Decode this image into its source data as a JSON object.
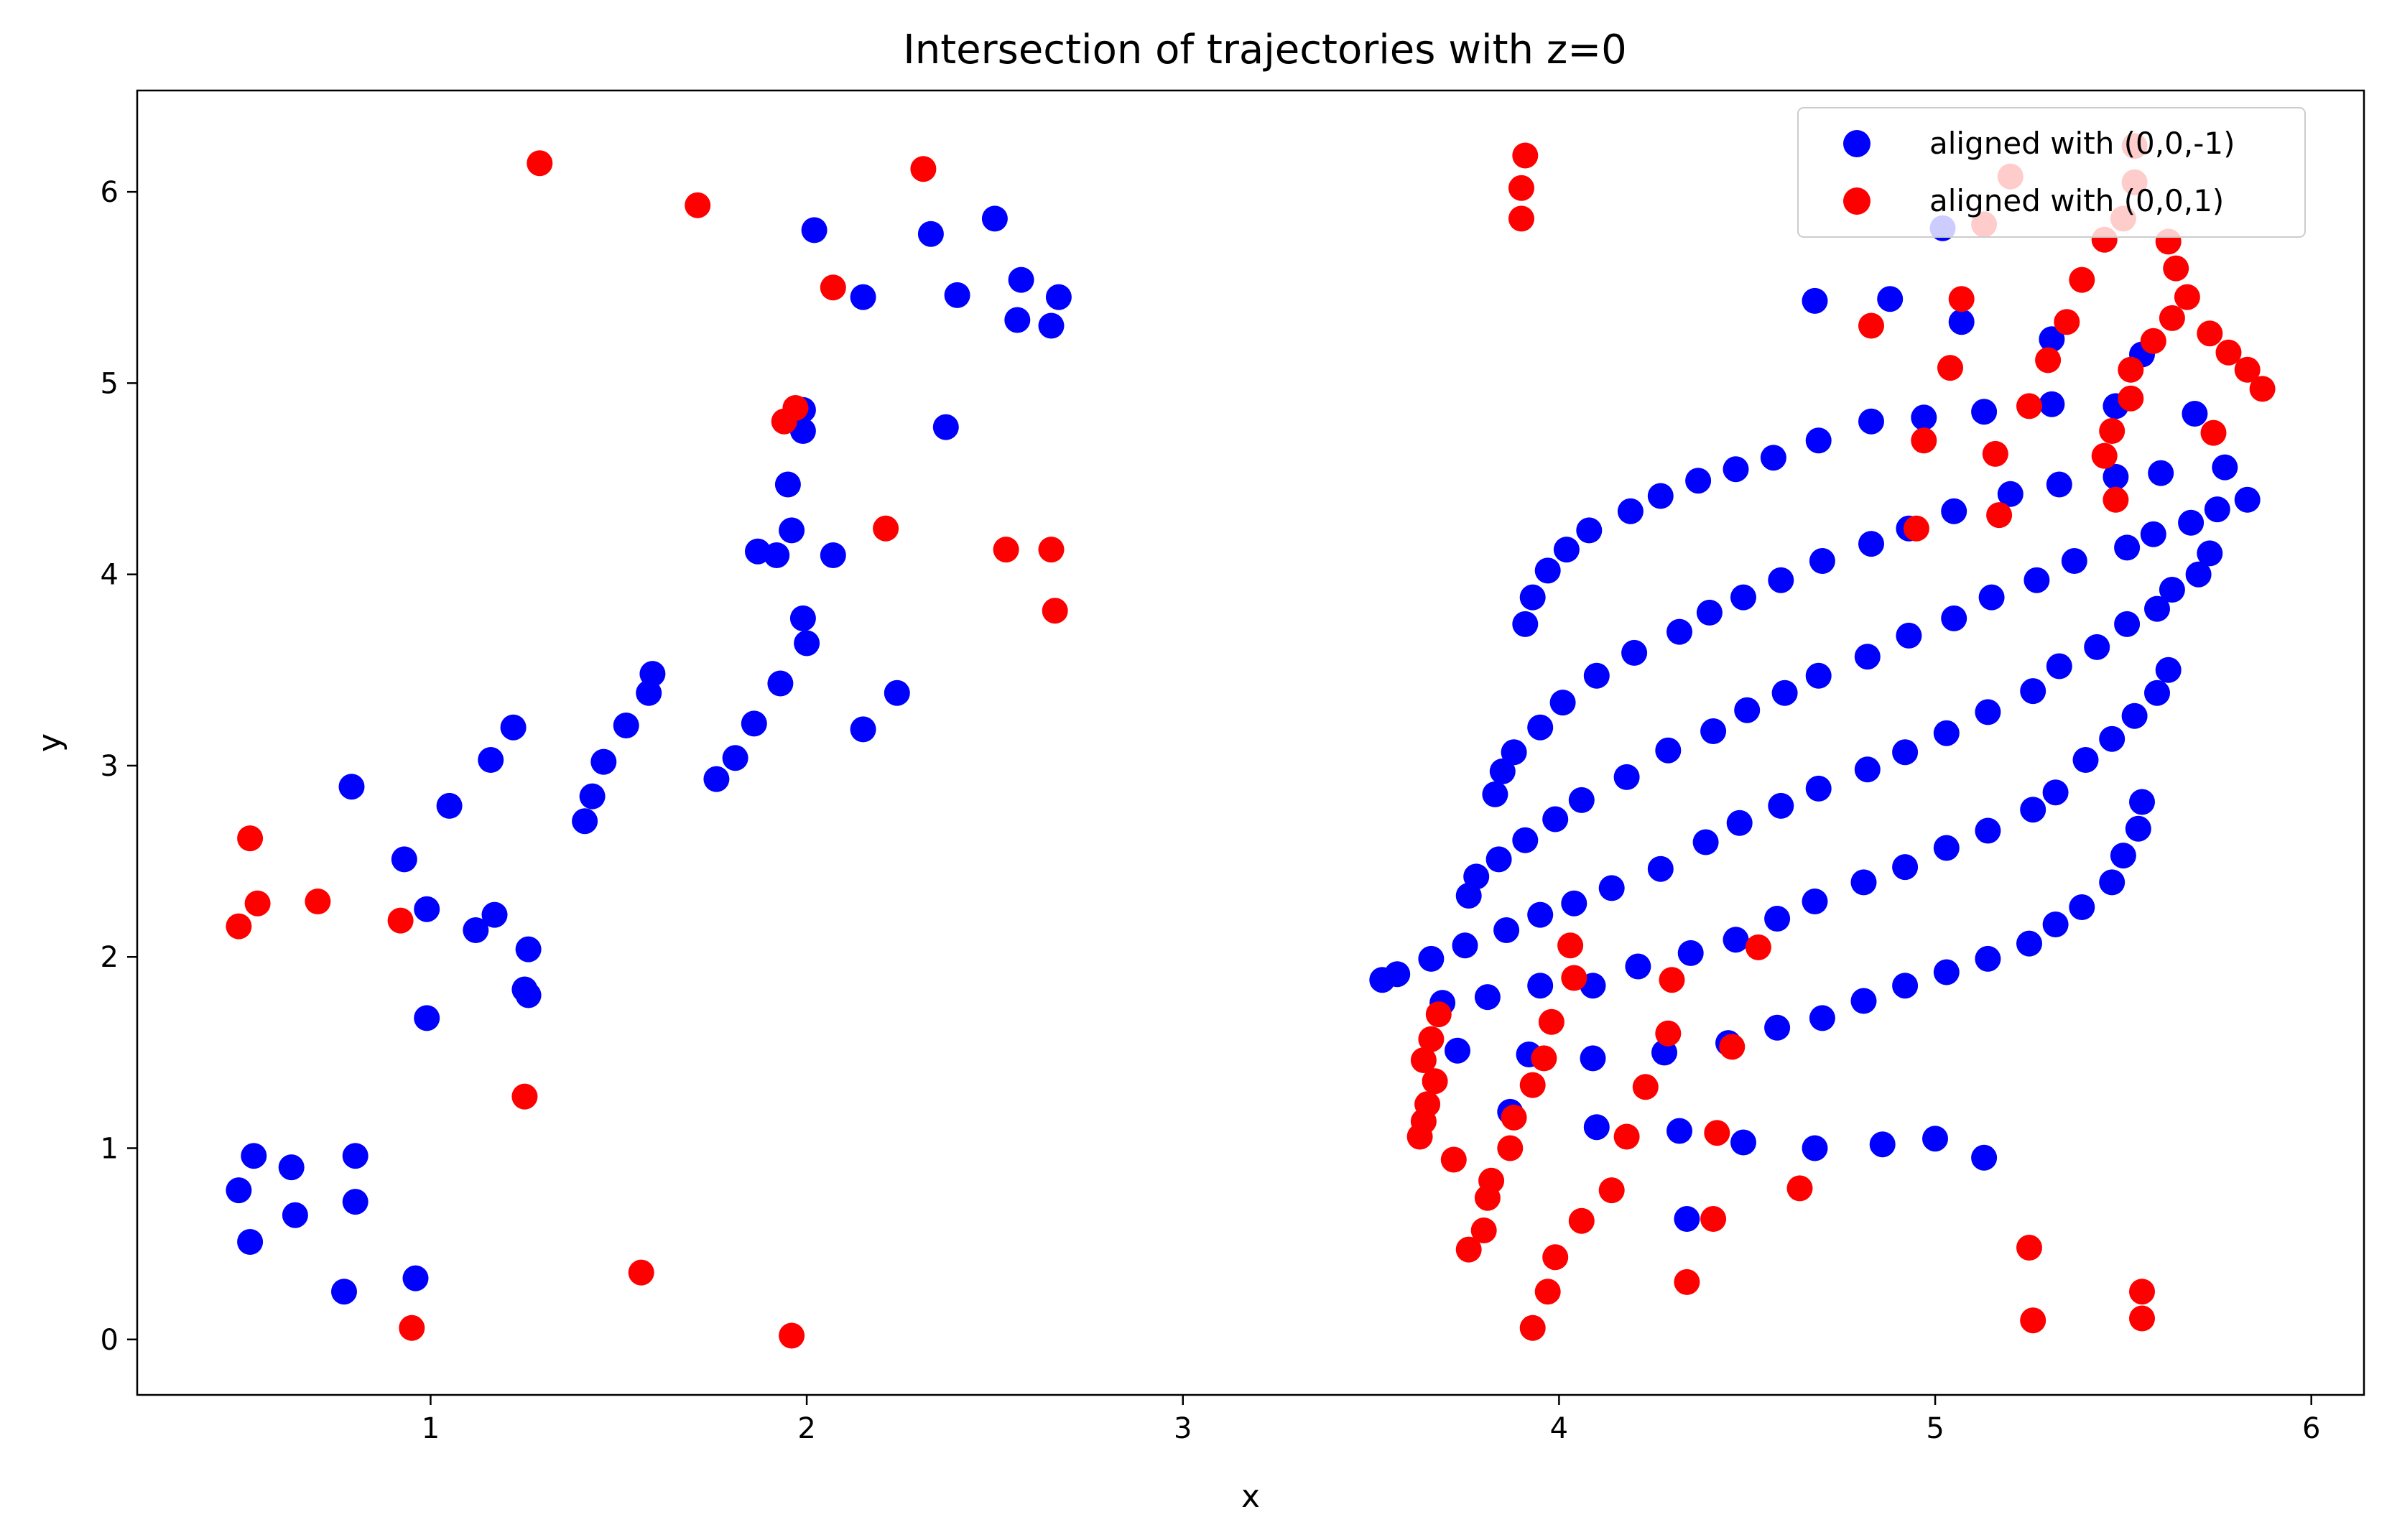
{
  "chart_data": {
    "type": "scatter",
    "title": "Intersection of trajectories with z=0",
    "xlabel": "x",
    "ylabel": "y",
    "xlim": [
      0.22,
      6.14
    ],
    "ylim": [
      -0.29,
      6.53
    ],
    "xticks": [
      1,
      2,
      3,
      4,
      5,
      6
    ],
    "yticks": [
      0,
      1,
      2,
      3,
      4,
      5,
      6
    ],
    "grid": false,
    "legend_position": "top-right",
    "series": [
      {
        "name": "aligned with (0,0,-1)",
        "color": "#0000ff",
        "points": [
          [
            0.49,
            0.78
          ],
          [
            0.52,
            0.51
          ],
          [
            0.53,
            0.96
          ],
          [
            0.63,
            0.9
          ],
          [
            0.64,
            0.65
          ],
          [
            0.77,
            0.25
          ],
          [
            0.8,
            0.72
          ],
          [
            0.8,
            0.96
          ],
          [
            0.96,
            0.32
          ],
          [
            0.99,
            1.68
          ],
          [
            0.99,
            2.25
          ],
          [
            0.93,
            2.51
          ],
          [
            0.79,
            2.89
          ],
          [
            1.05,
            2.79
          ],
          [
            1.12,
            2.14
          ],
          [
            1.17,
            2.22
          ],
          [
            1.26,
            2.04
          ],
          [
            1.25,
            1.83
          ],
          [
            1.26,
            1.8
          ],
          [
            1.16,
            3.03
          ],
          [
            1.22,
            3.2
          ],
          [
            1.41,
            2.71
          ],
          [
            1.43,
            2.84
          ],
          [
            1.46,
            3.02
          ],
          [
            1.52,
            3.21
          ],
          [
            1.58,
            3.38
          ],
          [
            1.59,
            3.48
          ],
          [
            1.76,
            2.93
          ],
          [
            1.81,
            3.04
          ],
          [
            1.86,
            3.22
          ],
          [
            1.87,
            4.12
          ],
          [
            1.92,
            4.1
          ],
          [
            1.93,
            3.43
          ],
          [
            1.95,
            4.47
          ],
          [
            1.96,
            4.23
          ],
          [
            1.99,
            4.86
          ],
          [
            1.99,
            4.75
          ],
          [
            1.99,
            3.77
          ],
          [
            2.0,
            3.64
          ],
          [
            2.07,
            4.1
          ],
          [
            2.02,
            5.8
          ],
          [
            2.15,
            5.45
          ],
          [
            2.15,
            3.19
          ],
          [
            2.24,
            3.38
          ],
          [
            2.33,
            5.78
          ],
          [
            2.37,
            4.77
          ],
          [
            2.4,
            5.46
          ],
          [
            2.5,
            5.86
          ],
          [
            2.56,
            5.33
          ],
          [
            2.57,
            5.54
          ],
          [
            2.65,
            5.3
          ],
          [
            2.67,
            5.45
          ],
          [
            3.53,
            1.88
          ],
          [
            3.57,
            1.91
          ],
          [
            3.66,
            1.99
          ],
          [
            3.69,
            1.76
          ],
          [
            3.73,
            1.51
          ],
          [
            3.75,
            2.06
          ],
          [
            3.76,
            2.32
          ],
          [
            3.78,
            2.42
          ],
          [
            3.81,
            1.79
          ],
          [
            3.83,
            2.85
          ],
          [
            3.84,
            2.51
          ],
          [
            3.85,
            2.97
          ],
          [
            3.86,
            2.14
          ],
          [
            3.88,
            3.07
          ],
          [
            3.87,
            1.19
          ],
          [
            3.91,
            3.74
          ],
          [
            3.91,
            2.61
          ],
          [
            3.92,
            1.49
          ],
          [
            3.93,
            3.88
          ],
          [
            3.95,
            2.22
          ],
          [
            3.95,
            1.85
          ],
          [
            3.95,
            3.2
          ],
          [
            3.97,
            4.02
          ],
          [
            3.99,
            2.72
          ],
          [
            4.01,
            3.33
          ],
          [
            4.02,
            4.13
          ],
          [
            4.04,
            2.28
          ],
          [
            4.06,
            2.82
          ],
          [
            4.08,
            4.23
          ],
          [
            4.09,
            1.85
          ],
          [
            4.09,
            1.47
          ],
          [
            4.1,
            1.11
          ],
          [
            4.1,
            3.47
          ],
          [
            4.14,
            2.36
          ],
          [
            4.18,
            2.94
          ],
          [
            4.19,
            4.33
          ],
          [
            4.2,
            3.59
          ],
          [
            4.21,
            1.95
          ],
          [
            4.27,
            4.41
          ],
          [
            4.27,
            2.46
          ],
          [
            4.28,
            1.5
          ],
          [
            4.29,
            3.08
          ],
          [
            4.32,
            3.7
          ],
          [
            4.32,
            1.09
          ],
          [
            4.34,
            0.63
          ],
          [
            4.35,
            2.02
          ],
          [
            4.37,
            4.49
          ],
          [
            4.39,
            2.6
          ],
          [
            4.4,
            3.8
          ],
          [
            4.41,
            3.18
          ],
          [
            4.45,
            1.55
          ],
          [
            4.47,
            2.09
          ],
          [
            4.47,
            4.55
          ],
          [
            4.48,
            2.7
          ],
          [
            4.49,
            3.88
          ],
          [
            4.49,
            1.03
          ],
          [
            4.5,
            3.29
          ],
          [
            4.57,
            4.61
          ],
          [
            4.58,
            2.2
          ],
          [
            4.58,
            1.63
          ],
          [
            4.59,
            3.97
          ],
          [
            4.59,
            2.79
          ],
          [
            4.6,
            3.38
          ],
          [
            4.68,
            1.0
          ],
          [
            4.68,
            5.43
          ],
          [
            4.68,
            2.29
          ],
          [
            4.69,
            4.7
          ],
          [
            4.69,
            2.88
          ],
          [
            4.69,
            3.47
          ],
          [
            4.7,
            4.07
          ],
          [
            4.7,
            1.68
          ],
          [
            4.81,
            2.39
          ],
          [
            4.81,
            1.77
          ],
          [
            4.82,
            2.98
          ],
          [
            4.82,
            3.57
          ],
          [
            4.83,
            4.8
          ],
          [
            4.83,
            4.16
          ],
          [
            4.86,
            1.02
          ],
          [
            4.88,
            5.44
          ],
          [
            4.92,
            2.47
          ],
          [
            4.92,
            1.85
          ],
          [
            4.92,
            3.07
          ],
          [
            4.93,
            4.24
          ],
          [
            4.93,
            3.68
          ],
          [
            4.97,
            4.82
          ],
          [
            5.0,
            1.05
          ],
          [
            5.02,
            5.81
          ],
          [
            5.03,
            2.57
          ],
          [
            5.03,
            1.92
          ],
          [
            5.03,
            3.17
          ],
          [
            5.05,
            3.77
          ],
          [
            5.05,
            4.33
          ],
          [
            5.07,
            5.32
          ],
          [
            5.13,
            4.85
          ],
          [
            5.13,
            0.95
          ],
          [
            5.14,
            2.66
          ],
          [
            5.14,
            1.99
          ],
          [
            5.14,
            3.28
          ],
          [
            5.15,
            3.88
          ],
          [
            5.2,
            4.42
          ],
          [
            5.25,
            2.07
          ],
          [
            5.26,
            2.77
          ],
          [
            5.26,
            3.39
          ],
          [
            5.27,
            3.97
          ],
          [
            5.31,
            4.89
          ],
          [
            5.31,
            5.23
          ],
          [
            5.32,
            2.86
          ],
          [
            5.32,
            2.17
          ],
          [
            5.33,
            3.52
          ],
          [
            5.33,
            4.47
          ],
          [
            5.37,
            4.07
          ],
          [
            5.39,
            2.26
          ],
          [
            5.4,
            3.03
          ],
          [
            5.43,
            3.62
          ],
          [
            5.47,
            2.39
          ],
          [
            5.47,
            3.14
          ],
          [
            5.48,
            4.51
          ],
          [
            5.48,
            4.88
          ],
          [
            5.5,
            2.53
          ],
          [
            5.51,
            4.14
          ],
          [
            5.51,
            3.74
          ],
          [
            5.53,
            3.26
          ],
          [
            5.54,
            2.67
          ],
          [
            5.55,
            2.81
          ],
          [
            5.55,
            5.15
          ],
          [
            5.58,
            4.21
          ],
          [
            5.59,
            3.38
          ],
          [
            5.59,
            3.82
          ],
          [
            5.6,
            4.53
          ],
          [
            5.62,
            3.5
          ],
          [
            5.63,
            3.92
          ],
          [
            5.68,
            4.27
          ],
          [
            5.69,
            4.84
          ],
          [
            5.7,
            4.0
          ],
          [
            5.73,
            4.11
          ],
          [
            5.75,
            4.34
          ],
          [
            5.77,
            4.56
          ],
          [
            5.83,
            4.39
          ]
        ]
      },
      {
        "name": "aligned with (0,0,1)",
        "color": "#ff0000",
        "points": [
          [
            0.49,
            2.16
          ],
          [
            0.52,
            2.62
          ],
          [
            0.54,
            2.28
          ],
          [
            0.7,
            2.29
          ],
          [
            0.92,
            2.19
          ],
          [
            0.95,
            0.06
          ],
          [
            1.25,
            1.27
          ],
          [
            1.29,
            6.15
          ],
          [
            1.56,
            0.35
          ],
          [
            1.71,
            5.93
          ],
          [
            1.94,
            4.8
          ],
          [
            1.96,
            0.02
          ],
          [
            1.97,
            4.87
          ],
          [
            2.07,
            5.5
          ],
          [
            2.21,
            4.24
          ],
          [
            2.31,
            6.12
          ],
          [
            2.53,
            4.13
          ],
          [
            2.65,
            4.13
          ],
          [
            2.66,
            3.81
          ],
          [
            3.63,
            1.06
          ],
          [
            3.64,
            1.46
          ],
          [
            3.64,
            1.14
          ],
          [
            3.65,
            1.23
          ],
          [
            3.66,
            1.57
          ],
          [
            3.67,
            1.35
          ],
          [
            3.68,
            1.7
          ],
          [
            3.72,
            0.94
          ],
          [
            3.76,
            0.47
          ],
          [
            3.8,
            0.57
          ],
          [
            3.81,
            0.74
          ],
          [
            3.82,
            0.83
          ],
          [
            3.87,
            1.0
          ],
          [
            3.88,
            1.16
          ],
          [
            3.9,
            5.86
          ],
          [
            3.9,
            6.02
          ],
          [
            3.91,
            6.19
          ],
          [
            3.93,
            0.06
          ],
          [
            3.93,
            1.33
          ],
          [
            3.96,
            1.47
          ],
          [
            3.97,
            0.25
          ],
          [
            3.98,
            1.66
          ],
          [
            3.99,
            0.43
          ],
          [
            4.03,
            2.06
          ],
          [
            4.04,
            1.89
          ],
          [
            4.06,
            0.62
          ],
          [
            4.14,
            0.78
          ],
          [
            4.18,
            1.06
          ],
          [
            4.23,
            1.32
          ],
          [
            4.29,
            1.6
          ],
          [
            4.3,
            1.88
          ],
          [
            4.34,
            0.3
          ],
          [
            4.41,
            0.63
          ],
          [
            4.42,
            1.08
          ],
          [
            4.46,
            1.53
          ],
          [
            4.53,
            2.05
          ],
          [
            4.64,
            0.79
          ],
          [
            4.83,
            5.3
          ],
          [
            4.95,
            4.24
          ],
          [
            4.97,
            4.7
          ],
          [
            5.04,
            5.08
          ],
          [
            5.07,
            5.44
          ],
          [
            5.13,
            5.83
          ],
          [
            5.16,
            4.63
          ],
          [
            5.17,
            4.31
          ],
          [
            5.2,
            6.08
          ],
          [
            5.25,
            4.88
          ],
          [
            5.25,
            0.48
          ],
          [
            5.26,
            0.1
          ],
          [
            5.3,
            5.12
          ],
          [
            5.35,
            5.32
          ],
          [
            5.39,
            5.54
          ],
          [
            5.45,
            5.75
          ],
          [
            5.45,
            4.62
          ],
          [
            5.47,
            4.75
          ],
          [
            5.48,
            4.39
          ],
          [
            5.5,
            5.86
          ],
          [
            5.52,
            5.07
          ],
          [
            5.52,
            4.92
          ],
          [
            5.53,
            6.05
          ],
          [
            5.53,
            6.24
          ],
          [
            5.55,
            0.25
          ],
          [
            5.55,
            0.11
          ],
          [
            5.58,
            5.22
          ],
          [
            5.62,
            5.74
          ],
          [
            5.63,
            5.34
          ],
          [
            5.64,
            5.6
          ],
          [
            5.67,
            5.45
          ],
          [
            5.73,
            5.26
          ],
          [
            5.74,
            4.74
          ],
          [
            5.78,
            5.16
          ],
          [
            5.83,
            5.07
          ],
          [
            5.87,
            4.97
          ]
        ]
      }
    ]
  }
}
